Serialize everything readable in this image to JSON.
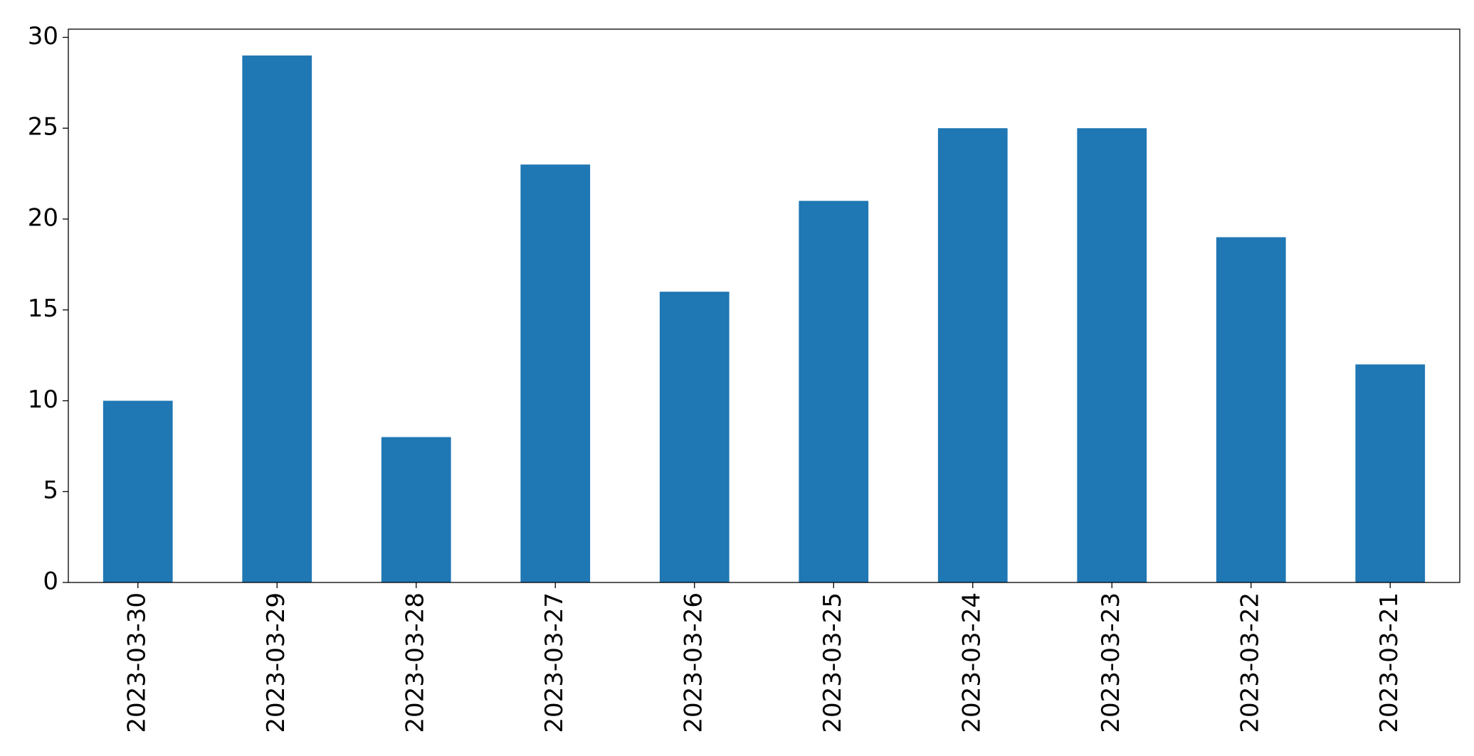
{
  "chart_data": {
    "type": "bar",
    "categories": [
      "2023-03-30",
      "2023-03-29",
      "2023-03-28",
      "2023-03-27",
      "2023-03-26",
      "2023-03-25",
      "2023-03-24",
      "2023-03-23",
      "2023-03-22",
      "2023-03-21"
    ],
    "values": [
      10,
      29,
      8,
      23,
      16,
      21,
      25,
      25,
      19,
      12
    ],
    "color": "#1f77b4",
    "ylim": [
      0,
      30.45
    ],
    "yticks": [
      0,
      5,
      10,
      15,
      20,
      25,
      30
    ],
    "grid": false
  }
}
